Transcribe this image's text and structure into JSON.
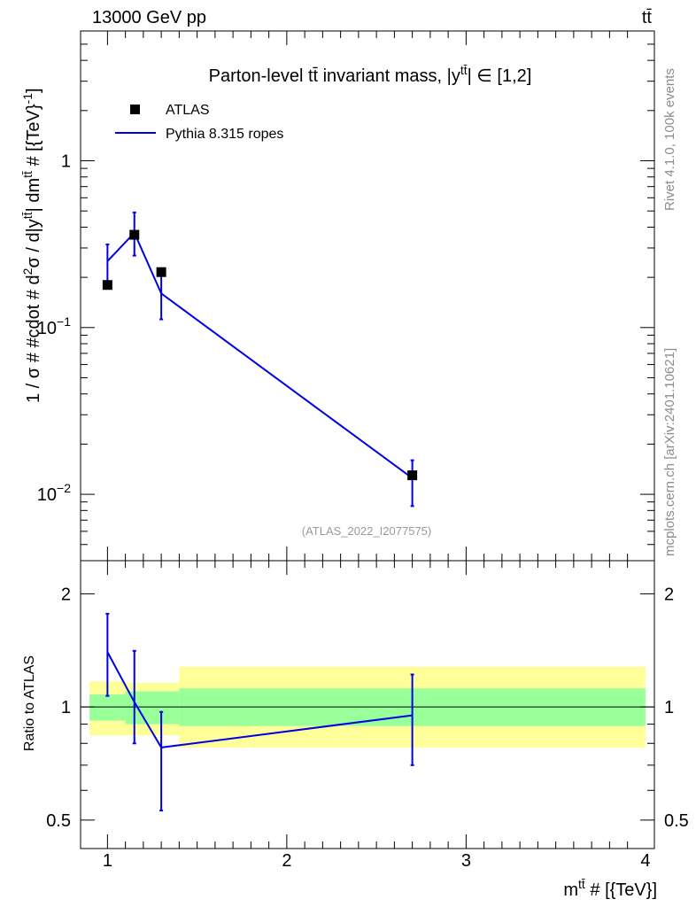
{
  "header": {
    "energy_label": "13000 GeV pp",
    "process_label": "tt̄"
  },
  "side_labels": {
    "rivet": "Rivet 4.1.0,  100k events",
    "source": "mcplots.cern.ch [arXiv:2401.10621]"
  },
  "colors": {
    "data": "#000000",
    "mc": "#0000e6",
    "band_inner": "#99ff99",
    "band_outer": "#ffff99"
  },
  "chart_data": [
    {
      "type": "scatter",
      "title": "Parton-level tt̄ invariant mass, |y^tt̄| ∈ [1,2]",
      "title_parts": {
        "main": "Parton-level tt̄ invariant mass, |y",
        "sup": "tt̄",
        "tail": "| ∈ [1,2]"
      },
      "ylabel": "1 / σ # #cdot # d²σ / d|y^tt̄| dm^tt̄ # [{TeV}^-1]",
      "ylabel_parts": [
        "1 / σ # #cdot # d",
        "2",
        "σ / d|y",
        "tt̄",
        "| dm",
        "tt̄",
        " # [{TeV}",
        "-1",
        "]"
      ],
      "yscale": "log",
      "ylim": [
        0.004,
        6.0
      ],
      "xlim": [
        0.85,
        4.05
      ],
      "y_ticks": [
        {
          "value": 0.01,
          "base": "10",
          "exp": "−2"
        },
        {
          "value": 0.1,
          "base": "10",
          "exp": "−1"
        },
        {
          "value": 1,
          "base": "1",
          "exp": ""
        }
      ],
      "legend_placement": "top-left",
      "watermark": "(ATLAS_2022_I2077575)",
      "series": [
        {
          "name": "ATLAS",
          "kind": "data",
          "x": [
            1.0,
            1.15,
            1.3,
            2.7
          ],
          "y": [
            0.18,
            0.36,
            0.215,
            0.013
          ]
        },
        {
          "name": "Pythia 8.315 ropes",
          "kind": "mc",
          "x": [
            1.0,
            1.15,
            1.3,
            2.7
          ],
          "y": [
            0.25,
            0.37,
            0.16,
            0.0125
          ],
          "err_low": [
            0.07,
            0.1,
            0.048,
            0.004
          ],
          "err_high": [
            0.065,
            0.12,
            0.045,
            0.0035
          ]
        }
      ]
    },
    {
      "type": "line",
      "ylabel": "Ratio to ATLAS",
      "xlabel_parts": [
        "m",
        "tt̄",
        " # [{TeV}]"
      ],
      "ylim": [
        0.42,
        2.45
      ],
      "y_ticks": [
        0.5,
        1,
        2
      ],
      "y_tick_labels": [
        "0.5",
        "1",
        "2"
      ],
      "x_ticks": [
        1,
        2,
        3,
        4
      ],
      "x_tick_labels": [
        "1",
        "2",
        "3",
        "4"
      ],
      "bands": [
        {
          "x_from": 0.9,
          "x_to": 1.1,
          "inner": [
            0.92,
            1.08
          ],
          "outer": [
            0.84,
            1.17
          ]
        },
        {
          "x_from": 1.1,
          "x_to": 1.4,
          "inner": [
            0.9,
            1.1
          ],
          "outer": [
            0.84,
            1.16
          ]
        },
        {
          "x_from": 1.4,
          "x_to": 4.0,
          "inner": [
            0.89,
            1.12
          ],
          "outer": [
            0.78,
            1.28
          ]
        }
      ],
      "reference": 1,
      "series": [
        {
          "name": "Pythia 8.315 ropes / ATLAS",
          "x": [
            1.0,
            1.15,
            1.3,
            2.7
          ],
          "y": [
            1.4,
            1.03,
            0.78,
            0.95
          ],
          "err_low": [
            0.33,
            0.23,
            0.25,
            0.25
          ],
          "err_high": [
            0.37,
            0.38,
            0.19,
            0.27
          ]
        }
      ]
    }
  ]
}
